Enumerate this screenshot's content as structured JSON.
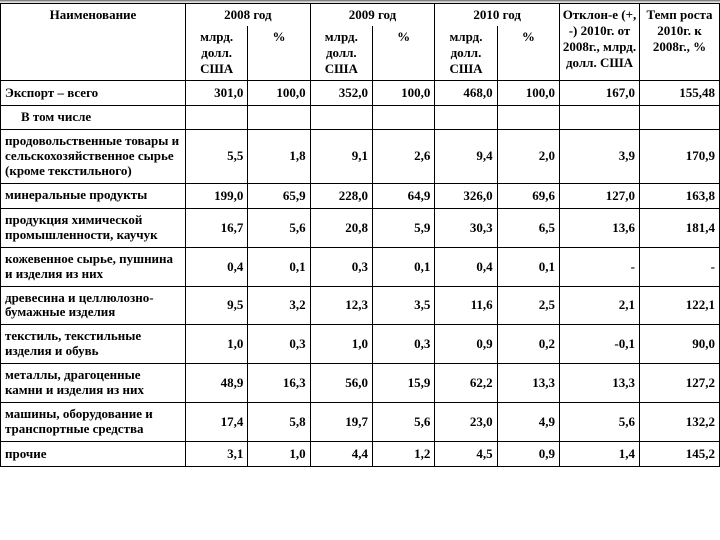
{
  "headers": {
    "name": "Наименование",
    "y2008": "2008 год",
    "y2009": "2009 год",
    "y2010": "2010 год",
    "mlrd": "млрд. долл. США",
    "pct": "%",
    "deviation": "Отклон-е (+, -) 2010г. от 2008г., млрд. долл. США",
    "tempo": "Темп роста 2010г. к 2008г., %"
  },
  "rows": [
    {
      "label": "Экспорт – всего",
      "v2008": "301,0",
      "p2008": "100,0",
      "v2009": "352,0",
      "p2009": "100,0",
      "v2010": "468,0",
      "p2010": "100,0",
      "dev": "167,0",
      "tempo": "155,48"
    },
    {
      "label": "В том числе",
      "vtom": true
    },
    {
      "label": "продовольственные товары и сельскохозяйственное сырье (кроме текстильного)",
      "v2008": "5,5",
      "p2008": "1,8",
      "v2009": "9,1",
      "p2009": "2,6",
      "v2010": "9,4",
      "p2010": "2,0",
      "dev": "3,9",
      "tempo": "170,9"
    },
    {
      "label": "минеральные продукты",
      "v2008": "199,0",
      "p2008": "65,9",
      "v2009": "228,0",
      "p2009": "64,9",
      "v2010": "326,0",
      "p2010": "69,6",
      "dev": "127,0",
      "tempo": "163,8"
    },
    {
      "label": "продукция химической промышленности, каучук",
      "v2008": "16,7",
      "p2008": "5,6",
      "v2009": "20,8",
      "p2009": "5,9",
      "v2010": "30,3",
      "p2010": "6,5",
      "dev": "13,6",
      "tempo": "181,4"
    },
    {
      "label": "кожевенное сырье, пушнина и изделия из них",
      "v2008": "0,4",
      "p2008": "0,1",
      "v2009": "0,3",
      "p2009": "0,1",
      "v2010": "0,4",
      "p2010": "0,1",
      "dev": "-",
      "tempo": "-"
    },
    {
      "label": "древесина и целлюлозно-бумажные изделия",
      "v2008": "9,5",
      "p2008": "3,2",
      "v2009": "12,3",
      "p2009": "3,5",
      "v2010": "11,6",
      "p2010": "2,5",
      "dev": "2,1",
      "tempo": "122,1"
    },
    {
      "label": "текстиль, текстильные изделия и обувь",
      "v2008": "1,0",
      "p2008": "0,3",
      "v2009": "1,0",
      "p2009": "0,3",
      "v2010": "0,9",
      "p2010": "0,2",
      "dev": "-0,1",
      "tempo": "90,0"
    },
    {
      "label": "металлы, драгоценные камни и изделия из них",
      "v2008": "48,9",
      "p2008": "16,3",
      "v2009": "56,0",
      "p2009": "15,9",
      "v2010": "62,2",
      "p2010": "13,3",
      "dev": "13,3",
      "tempo": "127,2"
    },
    {
      "label": "машины, оборудование и транспортные средства",
      "v2008": "17,4",
      "p2008": "5,8",
      "v2009": "19,7",
      "p2009": "5,6",
      "v2010": "23,0",
      "p2010": "4,9",
      "dev": "5,6",
      "tempo": "132,2"
    },
    {
      "label": "прочие",
      "v2008": "3,1",
      "p2008": "1,0",
      "v2009": "4,4",
      "p2009": "1,2",
      "v2010": "4,5",
      "p2010": "0,9",
      "dev": "1,4",
      "tempo": "145,2"
    }
  ]
}
